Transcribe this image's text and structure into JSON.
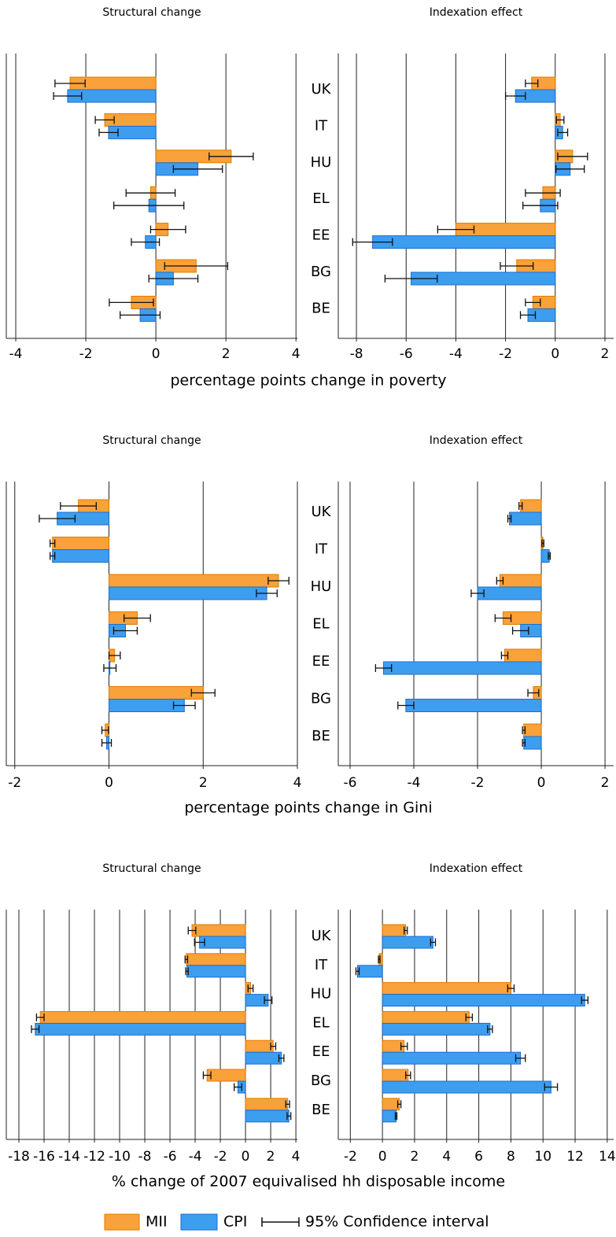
{
  "chart_data": [
    {
      "type": "bar",
      "orientation": "horizontal",
      "categories": [
        "UK",
        "IT",
        "HU",
        "EL",
        "EE",
        "BG",
        "BE"
      ],
      "xlabel": "percentage points change in poverty",
      "panels": [
        {
          "title": "Structural change",
          "xlim": [
            -4.27,
            4.04
          ],
          "xticks": [
            -4,
            -2,
            0,
            2,
            4
          ],
          "grid": true,
          "series": [
            {
              "values": [
                -2.45,
                -1.46,
                2.15,
                -0.15,
                0.35,
                1.15,
                -0.7
              ],
              "errors": [
                0.43,
                0.27,
                0.63,
                0.7,
                0.5,
                0.9,
                0.63
              ]
            },
            {
              "values": [
                -2.52,
                -1.35,
                1.2,
                -0.2,
                -0.3,
                0.5,
                -0.45
              ],
              "errors": [
                0.4,
                0.27,
                0.7,
                1.0,
                0.4,
                0.7,
                0.57
              ]
            }
          ]
        },
        {
          "title": "Indexation effect",
          "xlim": [
            -8.73,
            2.35
          ],
          "xticks": [
            -8,
            -6,
            -4,
            -2,
            0,
            2
          ],
          "grid": true,
          "series": [
            {
              "values": [
                -0.95,
                0.2,
                0.7,
                -0.5,
                -4.0,
                -1.55,
                -0.9
              ],
              "errors": [
                0.25,
                0.15,
                0.6,
                0.7,
                0.73,
                0.66,
                0.3
              ]
            },
            {
              "values": [
                -1.6,
                0.3,
                0.6,
                -0.6,
                -7.35,
                -5.8,
                -1.1
              ],
              "errors": [
                0.4,
                0.2,
                0.57,
                0.7,
                0.8,
                1.05,
                0.3
              ]
            }
          ]
        }
      ]
    },
    {
      "type": "bar",
      "orientation": "horizontal",
      "categories": [
        "UK",
        "IT",
        "HU",
        "EL",
        "EE",
        "BG",
        "BE"
      ],
      "xlabel": "percentage points change in Gini",
      "panels": [
        {
          "title": "Structural change",
          "xlim": [
            -2.18,
            4.0
          ],
          "xticks": [
            -2,
            0,
            2,
            4
          ],
          "grid": true,
          "series": [
            {
              "values": [
                -0.65,
                -1.2,
                3.6,
                0.6,
                0.12,
                2.0,
                -0.08
              ],
              "errors": [
                0.38,
                0.05,
                0.22,
                0.28,
                0.12,
                0.25,
                0.07
              ]
            },
            {
              "values": [
                -1.1,
                -1.2,
                3.35,
                0.35,
                0.02,
                1.6,
                -0.05
              ],
              "errors": [
                0.38,
                0.05,
                0.22,
                0.25,
                0.13,
                0.23,
                0.1
              ]
            }
          ]
        },
        {
          "title": "Indexation effect",
          "xlim": [
            -6.37,
            2.27
          ],
          "xticks": [
            -6,
            -4,
            -2,
            0,
            2
          ],
          "grid": true,
          "series": [
            {
              "values": [
                -0.65,
                0.05,
                -1.3,
                -1.2,
                -1.15,
                -0.25,
                -0.55
              ],
              "errors": [
                0.05,
                0.03,
                0.1,
                0.25,
                0.1,
                0.17,
                0.04
              ]
            },
            {
              "values": [
                -1.0,
                0.25,
                -2.0,
                -0.65,
                -4.95,
                -4.25,
                -0.55
              ],
              "errors": [
                0.05,
                0.03,
                0.2,
                0.25,
                0.25,
                0.25,
                0.04
              ]
            }
          ]
        }
      ]
    },
    {
      "type": "bar",
      "orientation": "horizontal",
      "categories": [
        "UK",
        "IT",
        "HU",
        "EL",
        "EE",
        "BG",
        "BE"
      ],
      "xlabel": "% change of 2007 equivalised hh disposable income",
      "panels": [
        {
          "title": "Structural change",
          "xlim": [
            -19.0,
            4.12
          ],
          "xticks": [
            -18,
            -16,
            -14,
            -12,
            -10,
            -8,
            -6,
            -4,
            -2,
            0,
            2,
            4
          ],
          "grid": true,
          "series": [
            {
              "values": [
                -4.25,
                -4.7,
                0.4,
                -16.3,
                2.2,
                -3.05,
                3.35
              ],
              "errors": [
                0.3,
                0.1,
                0.2,
                0.3,
                0.2,
                0.3,
                0.15
              ]
            },
            {
              "values": [
                -3.65,
                -4.65,
                1.8,
                -16.7,
                2.85,
                -0.6,
                3.45
              ],
              "errors": [
                0.4,
                0.1,
                0.3,
                0.3,
                0.2,
                0.3,
                0.15
              ]
            }
          ]
        },
        {
          "title": "Indexation effect",
          "xlim": [
            -2.75,
            14.4
          ],
          "xticks": [
            -2,
            0,
            2,
            4,
            6,
            8,
            10,
            12,
            14
          ],
          "grid": true,
          "series": [
            {
              "values": [
                1.45,
                -0.2,
                8.0,
                5.4,
                1.35,
                1.6,
                1.05
              ],
              "errors": [
                0.1,
                0.05,
                0.2,
                0.2,
                0.2,
                0.15,
                0.1
              ]
            },
            {
              "values": [
                3.15,
                -1.55,
                12.6,
                6.7,
                8.6,
                10.5,
                0.85
              ],
              "errors": [
                0.15,
                0.1,
                0.2,
                0.15,
                0.3,
                0.4,
                0.05
              ]
            }
          ]
        }
      ]
    }
  ],
  "legend": {
    "series": [
      {
        "name": "MII",
        "color": "#f9a13a"
      },
      {
        "name": "CPI",
        "color": "#3d9ef0"
      }
    ],
    "ci_label": "95% Confidence interval"
  }
}
